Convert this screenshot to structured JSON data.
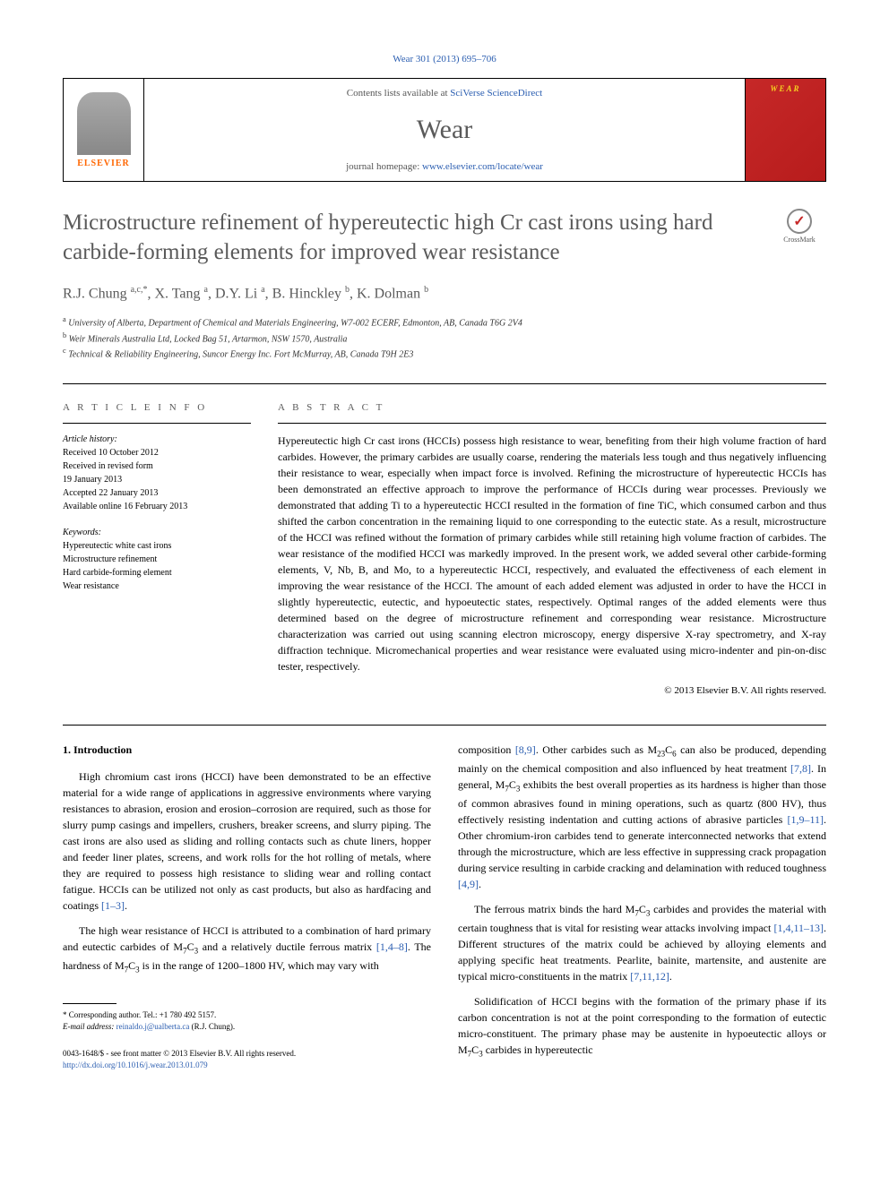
{
  "top_link": "Wear 301 (2013) 695–706",
  "header": {
    "contents_prefix": "Contents lists available at ",
    "contents_link": "SciVerse ScienceDirect",
    "journal_name": "Wear",
    "homepage_prefix": "journal homepage: ",
    "homepage_link": "www.elsevier.com/locate/wear",
    "elsevier_label": "ELSEVIER",
    "cover_title": "WEAR"
  },
  "crossmark_label": "CrossMark",
  "title": "Microstructure refinement of hypereutectic high Cr cast irons using hard carbide-forming elements for improved wear resistance",
  "authors_html": "R.J. Chung <sup>a,c,*</sup>, X. Tang <sup>a</sup>, D.Y. Li <sup>a</sup>, B. Hinckley <sup>b</sup>, K. Dolman <sup>b</sup>",
  "affiliations": [
    {
      "sup": "a",
      "text": "University of Alberta, Department of Chemical and Materials Engineering, W7-002 ECERF, Edmonton, AB, Canada T6G 2V4"
    },
    {
      "sup": "b",
      "text": "Weir Minerals Australia Ltd, Locked Bag 51, Artarmon, NSW 1570, Australia"
    },
    {
      "sup": "c",
      "text": "Technical & Reliability Engineering, Suncor Energy Inc. Fort McMurray, AB, Canada T9H 2E3"
    }
  ],
  "info_label": "A R T I C L E  I N F O",
  "abstract_label": "A B S T R A C T",
  "history": {
    "heading": "Article history:",
    "lines": [
      "Received 10 October 2012",
      "Received in revised form",
      "19 January 2013",
      "Accepted 22 January 2013",
      "Available online 16 February 2013"
    ]
  },
  "keywords": {
    "heading": "Keywords:",
    "lines": [
      "Hypereutectic white cast irons",
      "Microstructure refinement",
      "Hard carbide-forming element",
      "Wear resistance"
    ]
  },
  "abstract_text": "Hypereutectic high Cr cast irons (HCCIs) possess high resistance to wear, benefiting from their high volume fraction of hard carbides. However, the primary carbides are usually coarse, rendering the materials less tough and thus negatively influencing their resistance to wear, especially when impact force is involved. Refining the microstructure of hypereutectic HCCIs has been demonstrated an effective approach to improve the performance of HCCIs during wear processes. Previously we demonstrated that adding Ti to a hypereutectic HCCI resulted in the formation of fine TiC, which consumed carbon and thus shifted the carbon concentration in the remaining liquid to one corresponding to the eutectic state. As a result, microstructure of the HCCI was refined without the formation of primary carbides while still retaining high volume fraction of carbides. The wear resistance of the modified HCCI was markedly improved. In the present work, we added several other carbide-forming elements, V, Nb, B, and Mo, to a hypereutectic HCCI, respectively, and evaluated the effectiveness of each element in improving the wear resistance of the HCCI. The amount of each added element was adjusted in order to have the HCCI in slightly hypereutectic, eutectic, and hypoeutectic states, respectively. Optimal ranges of the added elements were thus determined based on the degree of microstructure refinement and corresponding wear resistance. Microstructure characterization was carried out using scanning electron microscopy, energy dispersive X-ray spectrometry, and X-ray diffraction technique. Micromechanical properties and wear resistance were evaluated using micro-indenter and pin-on-disc tester, respectively.",
  "copyright": "© 2013 Elsevier B.V. All rights reserved.",
  "section1_heading": "1. Introduction",
  "col1": {
    "p1": "High chromium cast irons (HCCI) have been demonstrated to be an effective material for a wide range of applications in aggressive environments where varying resistances to abrasion, erosion and erosion–corrosion are required, such as those for slurry pump casings and impellers, crushers, breaker screens, and slurry piping. The cast irons are also used as sliding and rolling contacts such as chute liners, hopper and feeder liner plates, screens, and work rolls for the hot rolling of metals, where they are required to possess high resistance to sliding wear and rolling contact fatigue. HCCIs can be utilized not only as cast products, but also as hardfacing and coatings ",
    "p1_ref": "[1–3]",
    "p1_end": ".",
    "p2a": "The high wear resistance of HCCI is attributed to a combination of hard primary and eutectic carbides of M",
    "p2b": "C",
    "p2c": " and a relatively ductile ferrous matrix ",
    "p2_ref": "[1,4–8]",
    "p2d": ". The hardness of M",
    "p2e": "C",
    "p2f": " is in the range of 1200–1800 HV, which may vary with"
  },
  "col2": {
    "p1a": "composition ",
    "p1_ref1": "[8,9]",
    "p1b": ". Other carbides such as M",
    "p1c": "C",
    "p1d": " can also be produced, depending mainly on the chemical composition and also influenced by heat treatment ",
    "p1_ref2": "[7,8]",
    "p1e": ". In general, M",
    "p1f": "C",
    "p1g": " exhibits the best overall properties as its hardness is higher than those of common abrasives found in mining operations, such as quartz (800 HV), thus effectively resisting indentation and cutting actions of abrasive particles ",
    "p1_ref3": "[1,9–11]",
    "p1h": ". Other chromium-iron carbides tend to generate interconnected networks that extend through the microstructure, which are less effective in suppressing crack propagation during service resulting in carbide cracking and delamination with reduced toughness ",
    "p1_ref4": "[4,9]",
    "p1i": ".",
    "p2a": "The ferrous matrix binds the hard M",
    "p2b": "C",
    "p2c": " carbides and provides the material with certain toughness that is vital for resisting wear attacks involving impact ",
    "p2_ref1": "[1,4,11–13]",
    "p2d": ". Different structures of the matrix could be achieved by alloying elements and applying specific heat treatments. Pearlite, bainite, martensite, and austenite are typical micro-constituents in the matrix ",
    "p2_ref2": "[7,11,12]",
    "p2e": ".",
    "p3a": "Solidification of HCCI begins with the formation of the primary phase if its carbon concentration is not at the point corresponding to the formation of eutectic micro-constituent. The primary phase may be austenite in hypoeutectic alloys or M",
    "p3b": "C",
    "p3c": " carbides in hypereutectic"
  },
  "footnotes": {
    "corr": "* Corresponding author. Tel.: +1 780 492 5157.",
    "email_label": "E-mail address: ",
    "email": "reinaldo.j@ualberta.ca",
    "email_who": " (R.J. Chung)."
  },
  "bottom": {
    "line1": "0043-1648/$ - see front matter © 2013 Elsevier B.V. All rights reserved.",
    "line2": "http://dx.doi.org/10.1016/j.wear.2013.01.079"
  }
}
